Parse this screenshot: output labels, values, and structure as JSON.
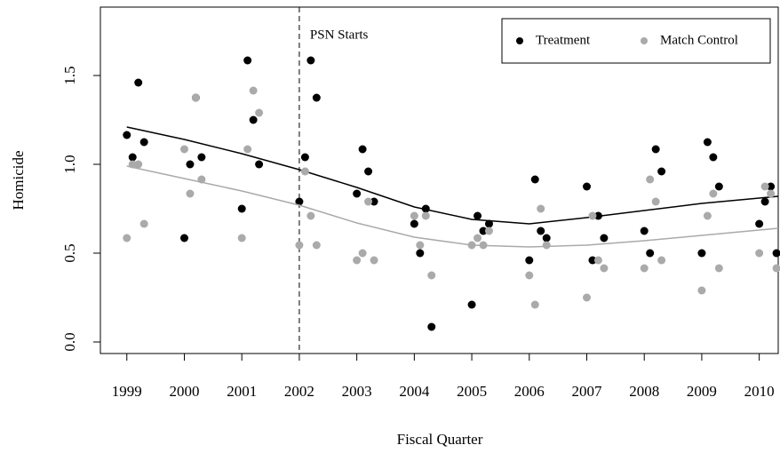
{
  "chart_data": {
    "type": "scatter",
    "xlabel": "Fiscal Quarter",
    "ylabel": "Homicide",
    "annotation": "PSN Starts",
    "vline": 2002,
    "xlim": [
      1998.54,
      2010.33
    ],
    "ylim": [
      -0.065,
      1.885
    ],
    "xticks": [
      1999,
      2000,
      2001,
      2002,
      2003,
      2004,
      2005,
      2006,
      2007,
      2008,
      2009,
      2010
    ],
    "yticks": [
      {
        "value": 0,
        "label": "0.0"
      },
      {
        "value": 0.5,
        "label": "0.5"
      },
      {
        "value": 1,
        "label": "1.0"
      },
      {
        "value": 1.5,
        "label": "1.5"
      }
    ],
    "legend": "top-right",
    "x": [
      1999,
      1999.1,
      1999.2,
      1999.3,
      2000,
      2000.1,
      2000.2,
      2000.3,
      2001,
      2001.1,
      2001.2,
      2001.3,
      2002,
      2002.1,
      2002.2,
      2002.3,
      2003,
      2003.1,
      2003.2,
      2003.3,
      2004,
      2004.1,
      2004.2,
      2004.3,
      2005,
      2005.1,
      2005.2,
      2005.3,
      2006,
      2006.1,
      2006.2,
      2006.3,
      2007,
      2007.1,
      2007.2,
      2007.3,
      2008,
      2008.1,
      2008.2,
      2008.3,
      2009,
      2009.1,
      2009.2,
      2009.3,
      2010,
      2010.1,
      2010.2,
      2010.3
    ],
    "fit_x": [
      1999,
      2000,
      2001,
      2002,
      2003,
      2004,
      2005,
      2006,
      2007,
      2008,
      2009,
      2010,
      2010.33
    ],
    "series": [
      {
        "name": "Treatment",
        "color": "#000000",
        "values": [
          1.165,
          1.04,
          1.46,
          1.125,
          0.585,
          1.0,
          1.375,
          1.04,
          0.75,
          1.585,
          1.25,
          1.0,
          0.79,
          1.04,
          1.585,
          1.375,
          0.835,
          1.085,
          0.96,
          0.79,
          0.665,
          0.5,
          0.75,
          0.085,
          0.21,
          0.71,
          0.625,
          0.665,
          0.46,
          0.915,
          0.625,
          0.585,
          0.875,
          0.46,
          0.71,
          0.585,
          0.625,
          0.5,
          1.085,
          0.96,
          0.5,
          1.125,
          1.04,
          0.875,
          0.665,
          0.79,
          0.875,
          0.5
        ],
        "fit": [
          1.21,
          1.14,
          1.06,
          0.97,
          0.87,
          0.76,
          0.69,
          0.665,
          0.7,
          0.74,
          0.78,
          0.81,
          0.82
        ]
      },
      {
        "name": "Match Control",
        "color": "#aaaaaa",
        "values": [
          0.585,
          1.0,
          1.0,
          0.665,
          1.085,
          0.835,
          1.375,
          0.915,
          0.585,
          1.085,
          1.415,
          1.29,
          0.545,
          0.96,
          0.71,
          0.545,
          0.46,
          0.5,
          0.79,
          0.46,
          0.71,
          0.545,
          0.71,
          0.375,
          0.545,
          0.585,
          0.545,
          0.625,
          0.375,
          0.21,
          0.75,
          0.545,
          0.25,
          0.71,
          0.46,
          0.415,
          0.415,
          0.915,
          0.79,
          0.46,
          0.29,
          0.71,
          0.835,
          0.415,
          0.5,
          0.875,
          0.835,
          0.415
        ],
        "fit": [
          0.99,
          0.92,
          0.85,
          0.77,
          0.67,
          0.59,
          0.545,
          0.535,
          0.545,
          0.57,
          0.6,
          0.63,
          0.64
        ]
      }
    ]
  }
}
